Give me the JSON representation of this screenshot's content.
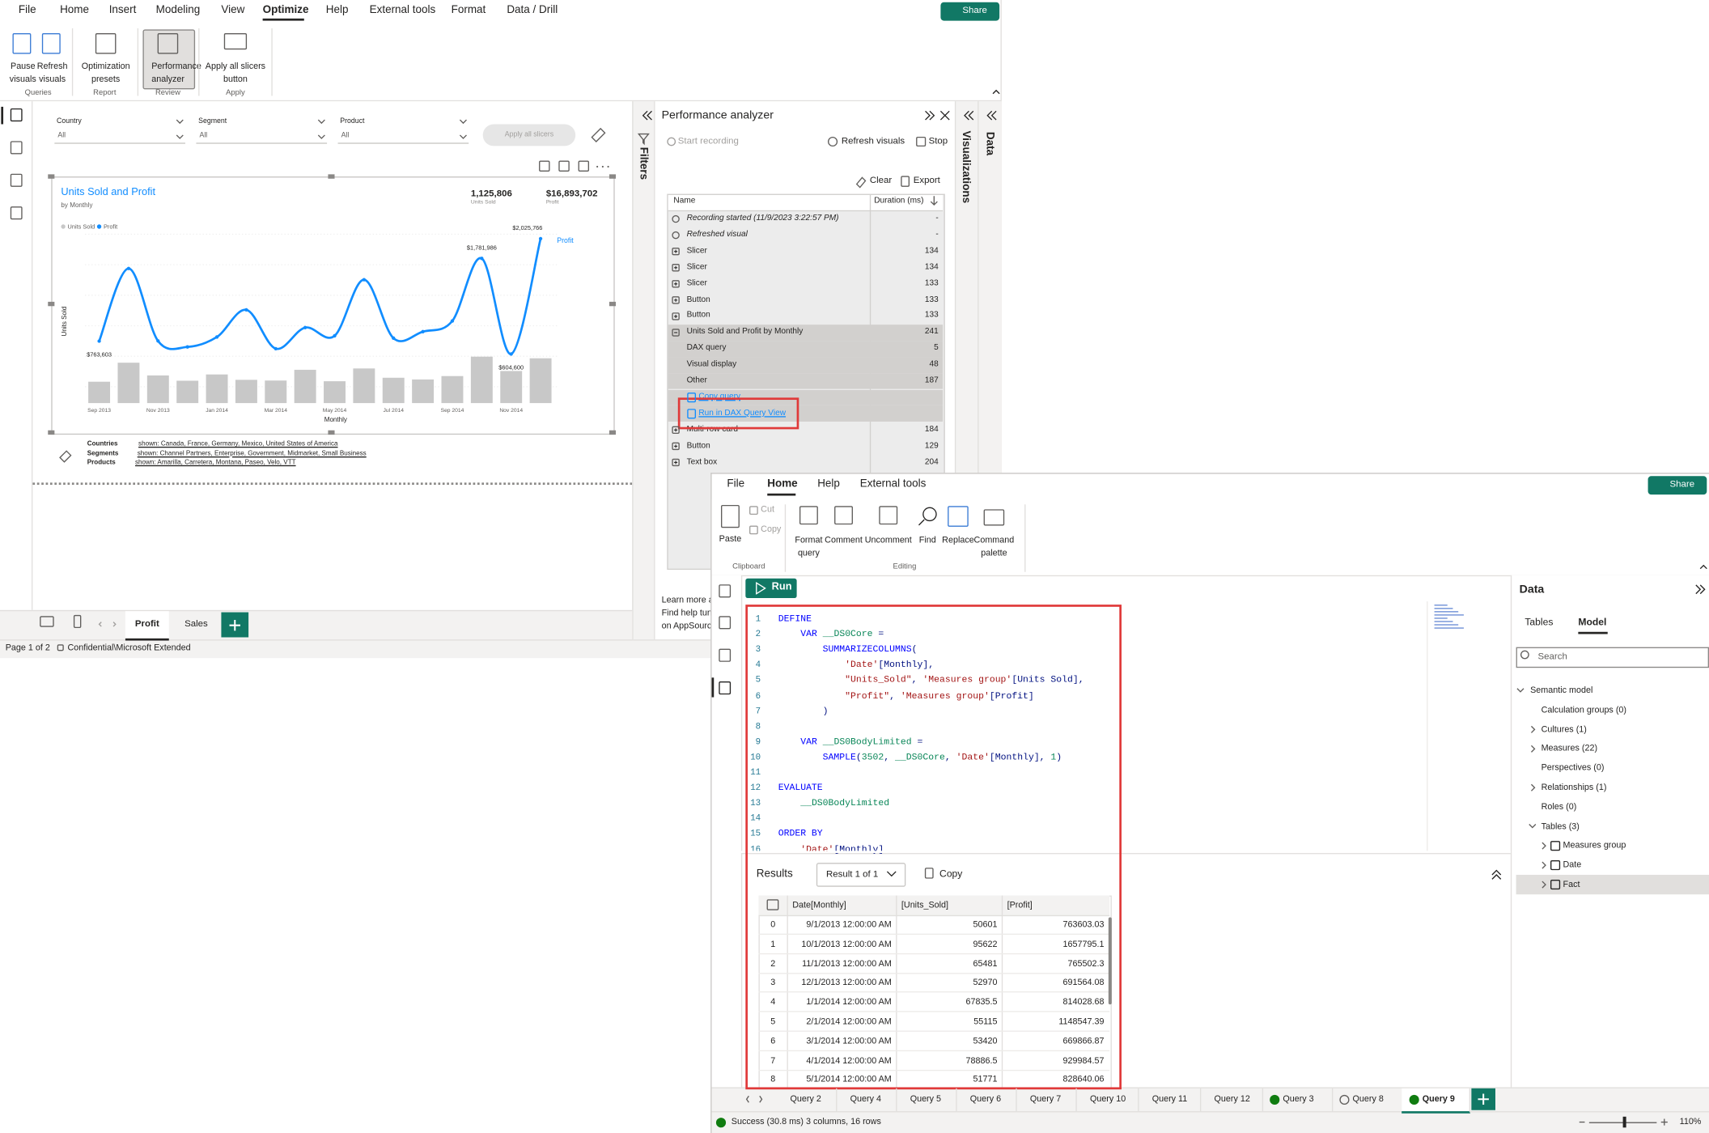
{
  "report_window": {
    "menu": [
      "File",
      "Home",
      "Insert",
      "Modeling",
      "View",
      "Optimize",
      "Help",
      "External tools",
      "Format",
      "Data / Drill"
    ],
    "share": "Share",
    "ribbon": [
      {
        "group": "Queries",
        "buttons": [
          "Pause visuals",
          "Refresh visuals"
        ]
      },
      {
        "group": "Report",
        "buttons": [
          "Optimization presets"
        ]
      },
      {
        "group": "Review",
        "buttons": [
          "Performance analyzer"
        ]
      },
      {
        "group": "Apply",
        "buttons": [
          "Apply all slicers button"
        ]
      }
    ],
    "slicers": [
      {
        "label": "Country",
        "value": "All"
      },
      {
        "label": "Segment",
        "value": "All"
      },
      {
        "label": "Product",
        "value": "All"
      }
    ],
    "apply_all_slicers": "Apply all slicers",
    "visual": {
      "title": "Units Sold and Profit",
      "subtitle": "by Monthly",
      "cards": [
        {
          "value": "1,125,806",
          "label": "Units Sold"
        },
        {
          "value": "$16,893,702",
          "label": "Profit"
        }
      ],
      "chart": {
        "type": "bar-line",
        "x_label": "Monthly",
        "y_label": "Units Sold",
        "categories": [
          "Sep 2013",
          null,
          "Nov 2013",
          null,
          "Jan 2014",
          null,
          "Mar 2014",
          null,
          "May 2014",
          null,
          "Jul 2014",
          null,
          "Sep 2014",
          null,
          "Nov 2014",
          null
        ],
        "series": [
          {
            "name": "Units Sold",
            "color": "#c8c8c8",
            "type": "bar",
            "values": [
              50601,
              95622,
              65481,
              52970,
              67835.5,
              55115,
              53420,
              78886.5,
              51771,
              82000,
              60000,
              56000,
              64000,
              110000,
              76000,
              106104
            ]
          },
          {
            "name": "Profit",
            "color": "#118dff",
            "type": "line",
            "axis": "y2",
            "values": [
              763603.03,
              1657795.1,
              765502.3,
              691564.08,
              814028.68,
              1148547.39,
              669866.87,
              929984.57,
              828640.06,
              1520000,
              800000,
              880000,
              1011818,
              1781986,
              604600,
              2025766
            ],
            "value_labels": [
              "$763,603",
              null,
              null,
              null,
              null,
              null,
              null,
              null,
              null,
              null,
              null,
              null,
              null,
              "$1,781,986",
              "$604,600",
              "$2,025,766"
            ]
          }
        ],
        "ylim": [
          0,
          400000
        ],
        "y2lim": [
          0,
          2080000
        ]
      }
    },
    "filter_notes": [
      {
        "label": "Countries",
        "text": "shown: Canada, France, Germany, Mexico, United States of America"
      },
      {
        "label": "Segments",
        "text": "shown: Channel Partners, Enterprise, Government, Midmarket, Small Business"
      },
      {
        "label": "Products",
        "text": "shown: Amarilla, Carretera, Montana, Paseo, Velo, VTT"
      }
    ],
    "page_tabs": [
      "Profit",
      "Sales"
    ],
    "status": [
      "Page 1 of 2",
      "Confidential\\Microsoft Extended"
    ],
    "panes": {
      "filters": "Filters",
      "visualizations": "Visualizations",
      "data": "Data"
    },
    "performance_analyzer": {
      "title": "Performance analyzer",
      "start_recording": "Start recording",
      "refresh_visuals": "Refresh visuals",
      "stop": "Stop",
      "clear": "Clear",
      "export": "Export",
      "columns": [
        "Name",
        "Duration (ms)"
      ],
      "rows": [
        {
          "name": "Recording started (11/9/2023 3:22:57 PM)",
          "duration": "-",
          "level": 0
        },
        {
          "name": "Refreshed visual",
          "duration": "-",
          "level": 0
        },
        {
          "name": "Slicer",
          "duration": 134,
          "level": 0
        },
        {
          "name": "Slicer",
          "duration": 134,
          "level": 0
        },
        {
          "name": "Slicer",
          "duration": 133,
          "level": 0
        },
        {
          "name": "Button",
          "duration": 133,
          "level": 0
        },
        {
          "name": "Button",
          "duration": 133,
          "level": 0
        },
        {
          "name": "Units Sold and Profit by Monthly",
          "duration": 241,
          "level": 0,
          "expanded": true
        },
        {
          "name": "DAX query",
          "duration": 5,
          "level": 1
        },
        {
          "name": "Visual display",
          "duration": 48,
          "level": 1
        },
        {
          "name": "Other",
          "duration": 187,
          "level": 1
        },
        {
          "name": "Copy query",
          "level": 1
        },
        {
          "name": "Run in DAX Query View",
          "level": 1
        },
        {
          "name": "Multi-row card",
          "duration": 184,
          "level": 0
        },
        {
          "name": "Button",
          "duration": 129,
          "level": 0
        },
        {
          "name": "Text box",
          "duration": 204,
          "level": 0
        }
      ],
      "learn_more": [
        "Learn more a",
        "Find help tun",
        "on AppSourc"
      ]
    }
  },
  "dax_window": {
    "menu": [
      "File",
      "Home",
      "Help",
      "External tools"
    ],
    "share": "Share",
    "ribbon": {
      "paste": "Paste",
      "cut": "Cut",
      "copy": "Copy",
      "format_query": "Format query",
      "comment": "Comment",
      "uncomment": "Uncomment",
      "find": "Find",
      "replace": "Replace",
      "command_palette": "Command palette",
      "groups": [
        "Clipboard",
        "Editing"
      ]
    },
    "run": "Run",
    "code": [
      {
        "n": 1,
        "text": "DEFINE"
      },
      {
        "n": 2,
        "text": "    VAR __DS0Core ="
      },
      {
        "n": 3,
        "text": "        SUMMARIZECOLUMNS("
      },
      {
        "n": 4,
        "text": "            'Date'[Monthly],"
      },
      {
        "n": 5,
        "text": "            \"Units_Sold\", 'Measures group'[Units Sold],"
      },
      {
        "n": 6,
        "text": "            \"Profit\", 'Measures group'[Profit]"
      },
      {
        "n": 7,
        "text": "        )"
      },
      {
        "n": 8
      },
      {
        "n": 9,
        "text": "    VAR __DS0BodyLimited ="
      },
      {
        "n": 10,
        "text": "        SAMPLE(3502, __DS0Core, 'Date'[Monthly], 1)"
      },
      {
        "n": 11
      },
      {
        "n": 12,
        "text": "EVALUATE"
      },
      {
        "n": 13,
        "text": "    __DS0BodyLimited"
      },
      {
        "n": 14
      },
      {
        "n": 15,
        "text": "ORDER BY"
      },
      {
        "n": 16,
        "text": "    'Date'[Monthly]"
      }
    ],
    "results": {
      "title": "Results",
      "selector": "Result 1 of 1",
      "copy": "Copy",
      "columns": [
        "Date[Monthly]",
        "[Units_Sold]",
        "[Profit]"
      ],
      "rows": [
        [
          0,
          "9/1/2013 12:00:00 AM",
          50601,
          763603.03
        ],
        [
          1,
          "10/1/2013 12:00:00 AM",
          95622,
          1657795.1
        ],
        [
          2,
          "11/1/2013 12:00:00 AM",
          65481,
          765502.3
        ],
        [
          3,
          "12/1/2013 12:00:00 AM",
          52970,
          691564.08
        ],
        [
          4,
          "1/1/2014 12:00:00 AM",
          67835.5,
          814028.68
        ],
        [
          5,
          "2/1/2014 12:00:00 AM",
          55115,
          1148547.39
        ],
        [
          6,
          "3/1/2014 12:00:00 AM",
          53420,
          669866.87
        ],
        [
          7,
          "4/1/2014 12:00:00 AM",
          78886.5,
          929984.57
        ],
        [
          8,
          "5/1/2014 12:00:00 AM",
          51771,
          828640.06
        ]
      ]
    },
    "query_tabs": [
      {
        "label": "Query 2"
      },
      {
        "label": "Query 4"
      },
      {
        "label": "Query 5"
      },
      {
        "label": "Query 6"
      },
      {
        "label": "Query 7"
      },
      {
        "label": "Query 10"
      },
      {
        "label": "Query 11"
      },
      {
        "label": "Query 12"
      },
      {
        "label": "Query 3",
        "state": "success"
      },
      {
        "label": "Query 8",
        "state": "pending"
      },
      {
        "label": "Query 9",
        "state": "success",
        "selected": true
      }
    ],
    "status": {
      "message": "Success (30.8 ms) 3 columns, 16 rows",
      "zoom": "110%"
    },
    "data_pane": {
      "title": "Data",
      "tabs": [
        "Tables",
        "Model"
      ],
      "search": "Search",
      "tree": [
        {
          "label": "Semantic model",
          "level": 0,
          "expanded": true
        },
        {
          "label": "Calculation groups (0)",
          "level": 1
        },
        {
          "label": "Cultures (1)",
          "level": 1,
          "expanded": false
        },
        {
          "label": "Measures (22)",
          "level": 1,
          "expanded": false
        },
        {
          "label": "Perspectives (0)",
          "level": 1
        },
        {
          "label": "Relationships (1)",
          "level": 1,
          "expanded": false
        },
        {
          "label": "Roles (0)",
          "level": 1
        },
        {
          "label": "Tables (3)",
          "level": 1,
          "expanded": true
        },
        {
          "label": "Measures group",
          "level": 2,
          "expanded": false
        },
        {
          "label": "Date",
          "level": 2,
          "expanded": false
        },
        {
          "label": "Fact",
          "level": 2,
          "expanded": false,
          "selected": true
        }
      ]
    }
  }
}
